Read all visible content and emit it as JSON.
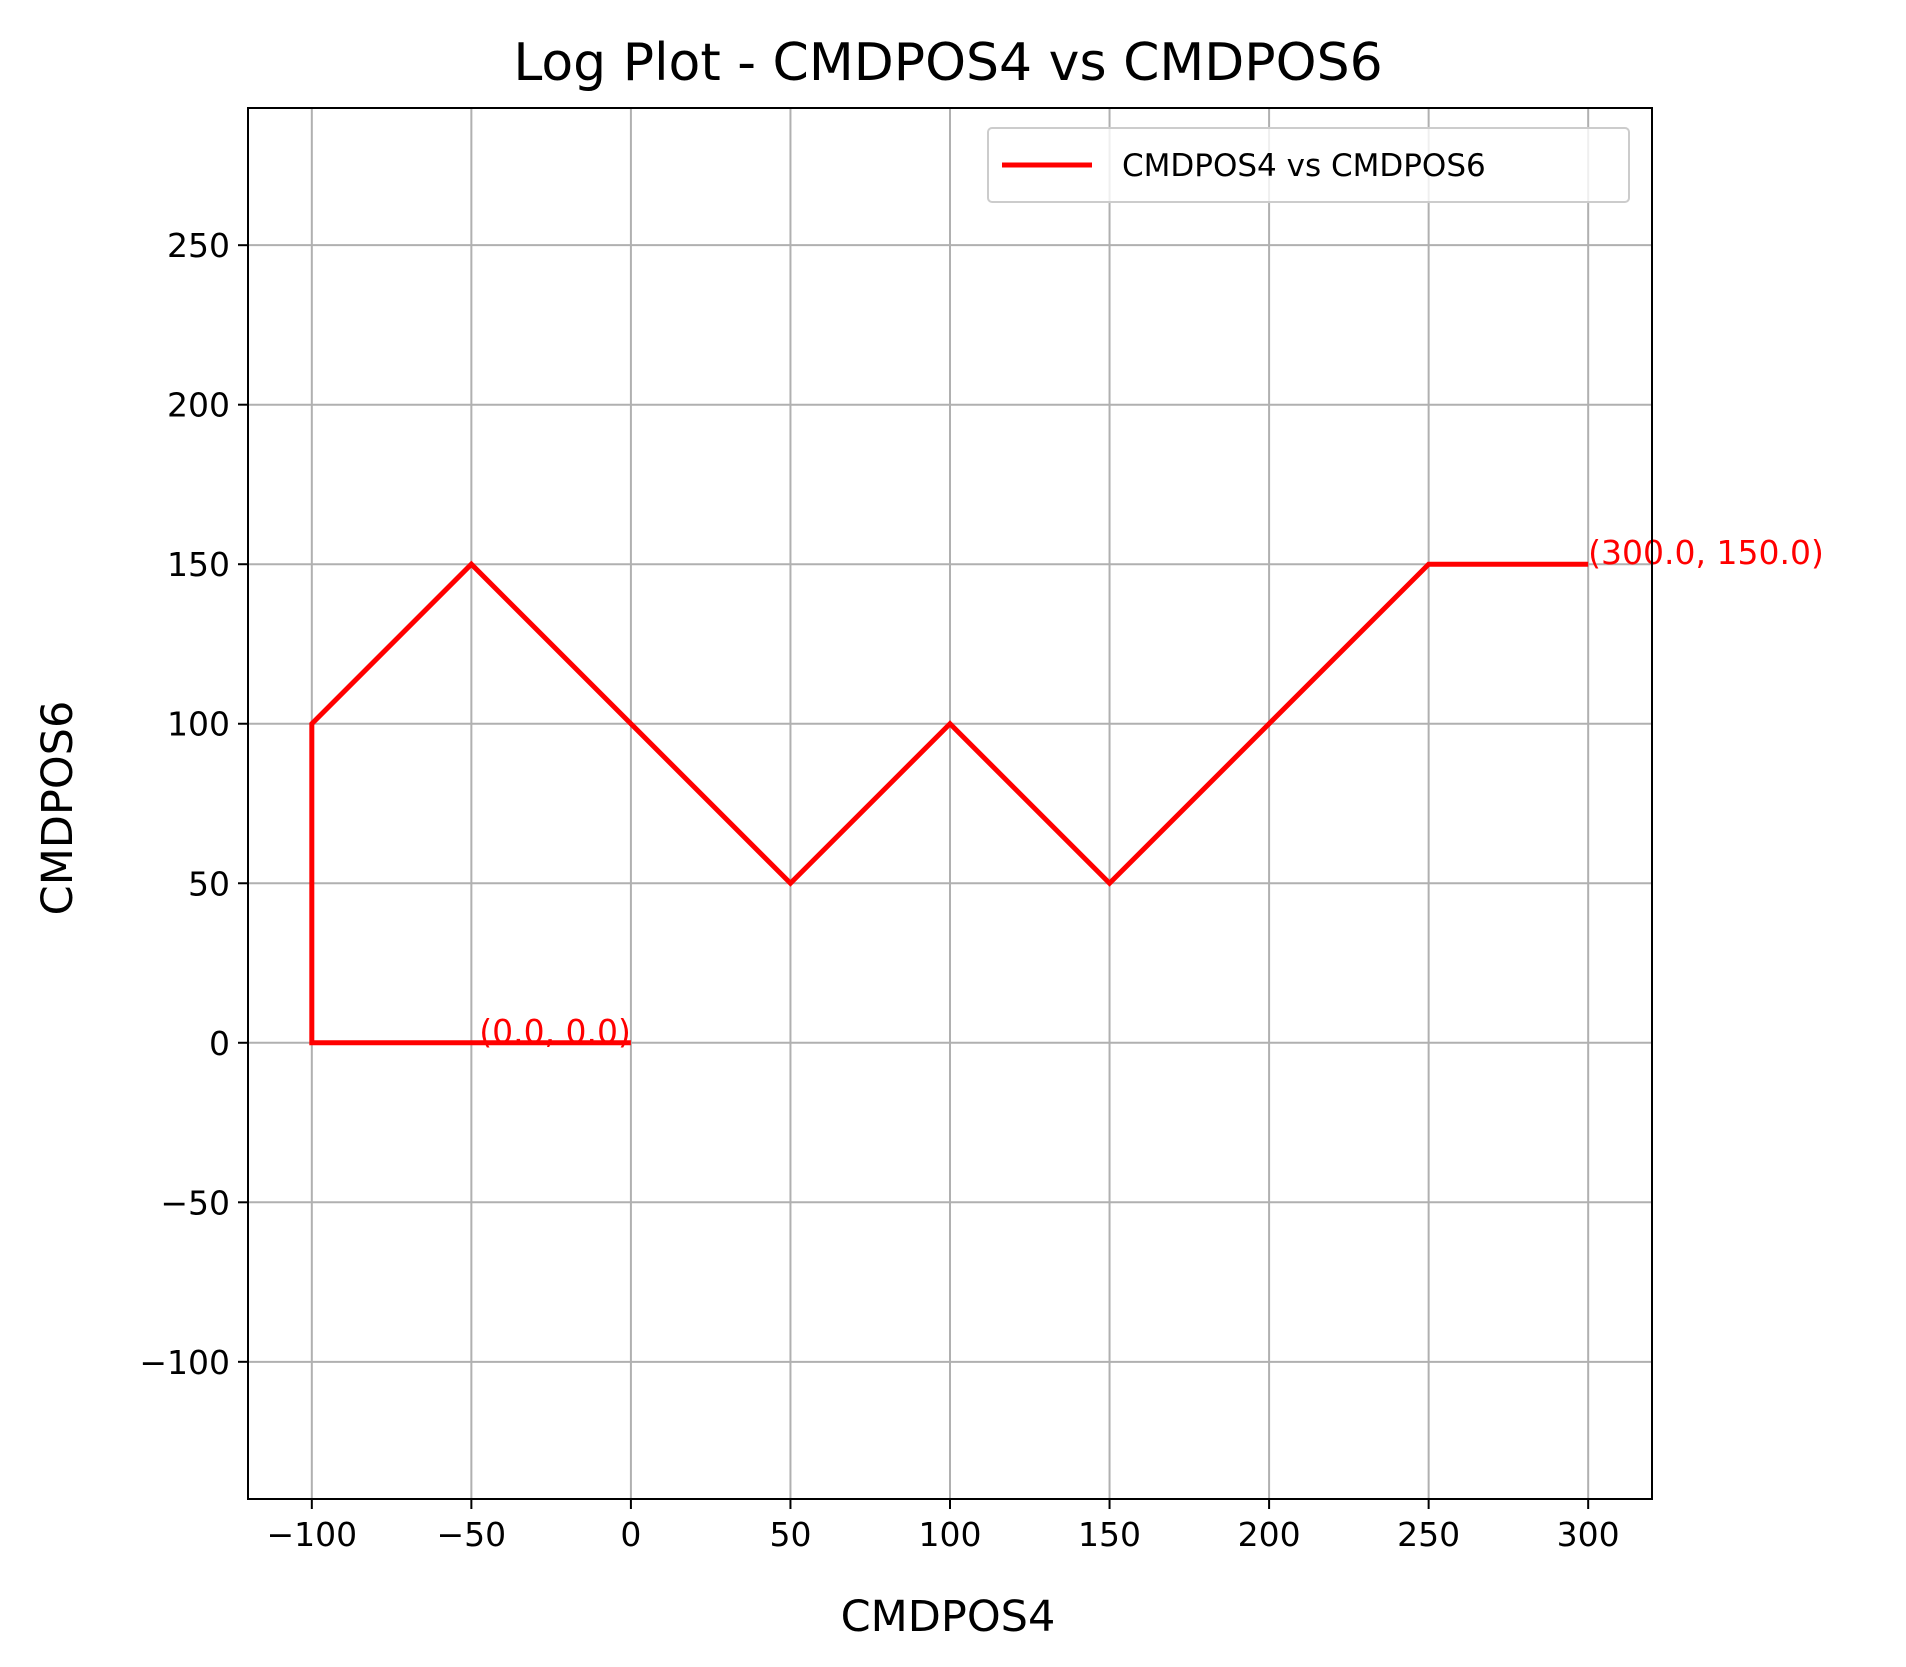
{
  "chart_data": {
    "type": "line",
    "title": "Log Plot - CMDPOS4 vs CMDPOS6",
    "xlabel": "CMDPOS4",
    "ylabel": "CMDPOS6",
    "xlim": [
      -120,
      320
    ],
    "ylim": [
      -143,
      293
    ],
    "xticks": [
      -100,
      -50,
      0,
      50,
      100,
      150,
      200,
      250,
      300
    ],
    "yticks": [
      -100,
      -50,
      0,
      50,
      100,
      150,
      200,
      250
    ],
    "xtick_labels": [
      "−100",
      "−50",
      "0",
      "50",
      "100",
      "150",
      "200",
      "250",
      "300"
    ],
    "ytick_labels": [
      "−100",
      "−50",
      "0",
      "50",
      "100",
      "150",
      "200",
      "250"
    ],
    "grid": true,
    "legend_position": "top-right",
    "series": [
      {
        "name": "CMDPOS4 vs CMDPOS6",
        "color": "#ff0000",
        "x": [
          0,
          -100,
          -100,
          -50,
          0,
          50,
          100,
          150,
          200,
          250,
          300
        ],
        "y": [
          0,
          0,
          100,
          150,
          100,
          50,
          100,
          50,
          100,
          150,
          150
        ]
      }
    ],
    "annotations": [
      {
        "text": "(0.0, 0.0)",
        "x": 0,
        "y": 0,
        "anchor": "end",
        "color": "#ff0000"
      },
      {
        "text": "(300.0, 150.0)",
        "x": 300,
        "y": 150,
        "anchor": "start",
        "color": "#ff0000"
      }
    ]
  }
}
